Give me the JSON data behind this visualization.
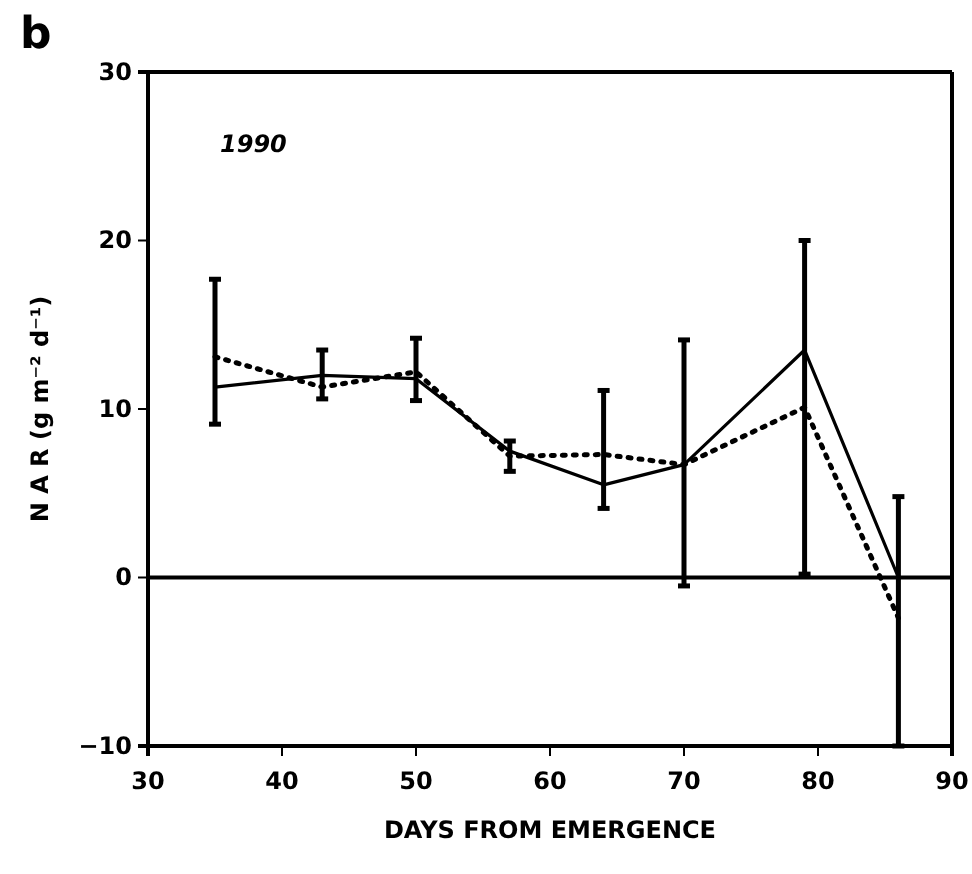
{
  "chart_data": {
    "type": "line",
    "title": "b",
    "xlabel": "DAYS FROM EMERGENCE",
    "ylabel": "N A R (g m⁻² d⁻¹)",
    "annotations": [
      "1990"
    ],
    "x": [
      35,
      43,
      50,
      57,
      64,
      70,
      79,
      86
    ],
    "series": [
      {
        "color": "#000000",
        "line_style": "solid",
        "values": [
          11.3,
          12.0,
          11.8,
          7.5,
          5.5,
          6.7,
          13.5,
          0
        ],
        "errors": [
          [
            9.1,
            17.7
          ],
          [
            10.6,
            13.5
          ],
          [
            10.5,
            14.2
          ],
          [
            6.3,
            8.1
          ],
          [
            4.1,
            11.1
          ],
          [
            -0.5,
            14.1
          ],
          [
            0.2,
            20.0
          ],
          [
            -10.0,
            4.8
          ]
        ]
      },
      {
        "color": "#000000",
        "line_style": "dotted",
        "values": [
          13.1,
          11.3,
          12.2,
          7.2,
          7.3,
          6.7,
          10.1,
          -2.4
        ]
      }
    ],
    "xlim": [
      30,
      90
    ],
    "xticks": [
      30,
      40,
      50,
      60,
      70,
      80,
      90
    ],
    "ylim": [
      -10,
      30
    ],
    "yticks": [
      -10,
      0,
      10,
      20,
      30
    ],
    "ref_lines": [
      {
        "axis": "y",
        "value": 0
      }
    ],
    "marker": "none"
  }
}
